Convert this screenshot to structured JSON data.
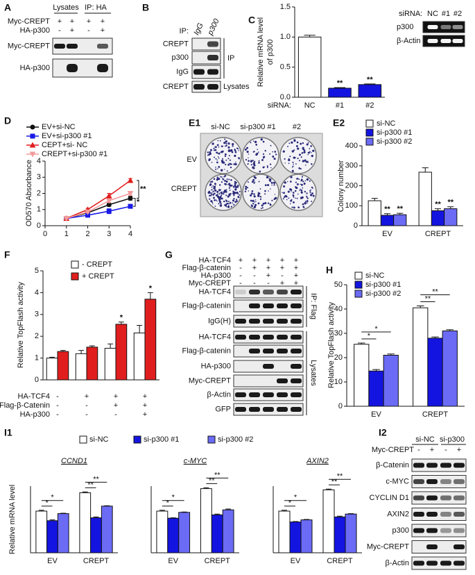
{
  "chart_data": [
    {
      "type": "bar",
      "label": "C",
      "ylabel_lines": [
        "Relative mRNA level",
        "of p300"
      ],
      "xlabel": "siRNA:",
      "categories": [
        "NC",
        "#1",
        "#2"
      ],
      "values": [
        1.0,
        0.15,
        0.21
      ],
      "errors": [
        0.03,
        0.01,
        0.01
      ],
      "colors": [
        "#ffffff",
        "#1414e0",
        "#1414e0"
      ],
      "annotations": [
        null,
        "**",
        "**"
      ],
      "ylim": [
        0,
        1.5
      ],
      "yticks": [
        {
          "value": 0,
          "label": "0.0"
        },
        0.5,
        {
          "value": 1,
          "label": "1.0"
        },
        1.5
      ]
    },
    {
      "type": "line",
      "label": "D",
      "ylabel": "OD570 Absorbance",
      "x": [
        1,
        2,
        3,
        4
      ],
      "xlim": [
        0,
        4
      ],
      "xticks": [
        0,
        1,
        2,
        3,
        4
      ],
      "ylim": [
        0,
        4
      ],
      "yticks": [
        0,
        1,
        2,
        3,
        4
      ],
      "series": [
        {
          "name": "EV+si-NC",
          "color": "#111111",
          "values": [
            0.45,
            0.8,
            1.3,
            1.7
          ],
          "errors": [
            0.03,
            0.05,
            0.1,
            0.12
          ]
        },
        {
          "name": "EV+si-p300 #1",
          "color": "#1a1ae6",
          "values": [
            0.45,
            0.65,
            0.9,
            1.2
          ],
          "errors": [
            0.03,
            0.06,
            0.15,
            0.1
          ],
          "annotation": "*"
        },
        {
          "name": "CEPT+si- NC",
          "color": "#e01e1e",
          "values": [
            0.45,
            1.0,
            1.85,
            2.8
          ],
          "errors": [
            0.03,
            0.08,
            0.15,
            0.12
          ],
          "annotation": "**"
        },
        {
          "name": "CREPT+si-p300 #1",
          "color": "#f29a9a",
          "values": [
            0.45,
            0.85,
            1.55,
            2.0
          ],
          "errors": [
            0.03,
            0.06,
            0.12,
            0.12
          ]
        }
      ]
    },
    {
      "type": "bar",
      "label": "E2",
      "ylabel": "Colony number",
      "categories": [
        "EV",
        "CREPT"
      ],
      "ylim": [
        0,
        400
      ],
      "yticks": [
        0,
        100,
        200,
        300,
        400
      ],
      "series": [
        {
          "name": "si-NC",
          "color": "#ffffff",
          "values": [
            125,
            268
          ],
          "errors": [
            12,
            22
          ]
        },
        {
          "name": "si-p300 #1",
          "color": "#1414e0",
          "values": [
            52,
            75
          ],
          "errors": [
            8,
            10
          ],
          "annotations": [
            "**",
            "**"
          ]
        },
        {
          "name": "si-p300 #2",
          "color": "#6b6bf5",
          "values": [
            55,
            85
          ],
          "errors": [
            7,
            10
          ],
          "annotations": [
            "**",
            "**"
          ]
        }
      ]
    },
    {
      "type": "bar",
      "label": "F",
      "ylabel": "Relative TopFlash activity",
      "ylim": [
        0,
        5
      ],
      "yticks": [
        0,
        1,
        2,
        3,
        4,
        5
      ],
      "series": [
        {
          "name": "- CREPT",
          "color": "#ffffff",
          "values": [
            1.0,
            1.2,
            1.45,
            2.15
          ],
          "errors": [
            0.04,
            0.15,
            0.2,
            0.35
          ]
        },
        {
          "name": "+ CREPT",
          "color": "#e01e1e",
          "values": [
            1.3,
            1.5,
            2.55,
            3.7
          ],
          "errors": [
            0.05,
            0.06,
            0.1,
            0.3
          ],
          "annotations": [
            null,
            null,
            "*",
            "*"
          ]
        }
      ],
      "conditions": [
        {
          "name": "HA-TCF4",
          "signs": [
            "-",
            "+",
            "+",
            "+"
          ]
        },
        {
          "name": "Flag-β-Catenin",
          "signs": [
            "-",
            "-",
            "+",
            "+"
          ]
        },
        {
          "name": "HA-p300",
          "signs": [
            "-",
            "-",
            "-",
            "+"
          ]
        }
      ]
    },
    {
      "type": "bar",
      "label": "H",
      "ylabel": "Relative TopFlash activity",
      "categories": [
        "EV",
        "CREPT"
      ],
      "ylim": [
        0,
        50
      ],
      "yticks": [
        0,
        10,
        20,
        30,
        40,
        50
      ],
      "brackets": true,
      "series": [
        {
          "name": "si-NC",
          "color": "#ffffff",
          "values": [
            25.5,
            40.5
          ],
          "errors": [
            0.5,
            0.8
          ]
        },
        {
          "name": "si-p300 #1",
          "color": "#1414e0",
          "values": [
            14.5,
            28
          ],
          "errors": [
            0.6,
            0.5
          ],
          "annotations": [
            "*",
            "**"
          ]
        },
        {
          "name": "si-p300 #2",
          "color": "#6b6bf5",
          "values": [
            21,
            31
          ],
          "errors": [
            0.5,
            0.5
          ],
          "annotations": [
            "*",
            "**"
          ]
        }
      ]
    },
    {
      "type": "bar-panels",
      "label": "I1",
      "ylabel": "Relative mRNA level",
      "ylim": [
        0,
        1.6
      ],
      "brackets": true,
      "legend": [
        {
          "name": "si-NC",
          "color": "#ffffff"
        },
        {
          "name": "si-p300 #1",
          "color": "#1414e0"
        },
        {
          "name": "si-p300 #2",
          "color": "#6b6bf5"
        }
      ],
      "subplots": [
        {
          "title": "CCND1",
          "categories": [
            "EV",
            "CREPT"
          ],
          "series": [
            {
              "values": [
                1.0,
                1.44
              ],
              "errors": [
                0.02,
                0.02
              ]
            },
            {
              "values": [
                0.77,
                0.84
              ],
              "errors": [
                0.02,
                0.02
              ],
              "annotations": [
                "*",
                "**"
              ]
            },
            {
              "values": [
                0.94,
                1.12
              ],
              "errors": [
                0.01,
                0.01
              ],
              "annotations": [
                "*",
                "**"
              ]
            }
          ]
        },
        {
          "title": "c-MYC",
          "categories": [
            "EV",
            "CREPT"
          ],
          "series": [
            {
              "values": [
                1.0,
                1.54
              ],
              "errors": [
                0.02,
                0.02
              ]
            },
            {
              "values": [
                0.83,
                0.91
              ],
              "errors": [
                0.01,
                0.02
              ],
              "annotations": [
                "*",
                "**"
              ]
            },
            {
              "values": [
                0.97,
                1.03
              ],
              "errors": [
                0.01,
                0.02
              ],
              "annotations": [
                "*",
                "**"
              ]
            }
          ]
        },
        {
          "title": "AXIN2",
          "categories": [
            "EV",
            "CREPT"
          ],
          "series": [
            {
              "values": [
                1.0,
                1.51
              ],
              "errors": [
                0.02,
                0.02
              ]
            },
            {
              "values": [
                0.74,
                0.86
              ],
              "errors": [
                0.01,
                0.02
              ],
              "annotations": [
                "*",
                "**"
              ]
            },
            {
              "values": [
                0.79,
                0.93
              ],
              "errors": [
                0.01,
                0.01
              ],
              "annotations": [
                "*",
                "**"
              ]
            }
          ]
        }
      ]
    }
  ],
  "blots": {
    "A": {
      "label": "A",
      "groups": [
        "Lysates",
        "IP: HA"
      ],
      "conditions": [
        {
          "name": "Myc-CREPT",
          "signs": [
            "+",
            "+",
            "+",
            "+"
          ]
        },
        {
          "name": "HA-p300",
          "signs": [
            "-",
            "+",
            "-",
            "+"
          ]
        }
      ],
      "rows": [
        "Myc-CREPT",
        "HA-p300"
      ]
    },
    "B": {
      "label": "B",
      "ip": "IP:",
      "lanes": [
        "IgG",
        "p300"
      ],
      "rows": [
        "CREPT",
        "p300",
        "IgG",
        "CREPT"
      ],
      "sides": [
        "IP",
        "Lysates"
      ]
    },
    "C": {
      "heading": "siRNA:",
      "lanes": [
        "NC",
        "#1",
        "#2"
      ],
      "rows": [
        "p300",
        "β-Actin"
      ]
    },
    "E1": {
      "label": "E1",
      "columns": [
        "si-NC",
        "si-p300 #1",
        "#2"
      ],
      "rows": [
        "EV",
        "CREPT"
      ]
    },
    "G": {
      "label": "G",
      "conditions": [
        {
          "name": "HA-TCF4",
          "signs": [
            "+",
            "+",
            "+",
            "+",
            "+"
          ]
        },
        {
          "name": "Flag-β-catenin",
          "signs": [
            "-",
            "+",
            "+",
            "+",
            "+"
          ]
        },
        {
          "name": "HA-p300",
          "signs": [
            "-",
            "-",
            "+",
            "-",
            "+"
          ]
        },
        {
          "name": "Myc-CREPT",
          "signs": [
            "-",
            "-",
            "-",
            "+",
            "+"
          ]
        }
      ],
      "rows": [
        "HA-TCF4",
        "Flag-β-catenin",
        "IgG(H)",
        "HA-TCF4",
        "Flag-β-catenin",
        "HA-p300",
        "Myc-CREPT",
        "β-Actin",
        "GFP"
      ],
      "sides": [
        "IP: Flag",
        "Lysates"
      ]
    },
    "I2": {
      "label": "I2",
      "groups": [
        "si-NC",
        "si-p300"
      ],
      "conditions": [
        {
          "name": "Myc-CREPT",
          "signs": [
            "-",
            "+",
            "-",
            "+"
          ]
        }
      ],
      "rows": [
        "β-Catenin",
        "c-MYC",
        "CYCLIN D1",
        "AXIN2",
        "p300",
        "Myc-CREPT",
        "β-Actin"
      ]
    }
  }
}
